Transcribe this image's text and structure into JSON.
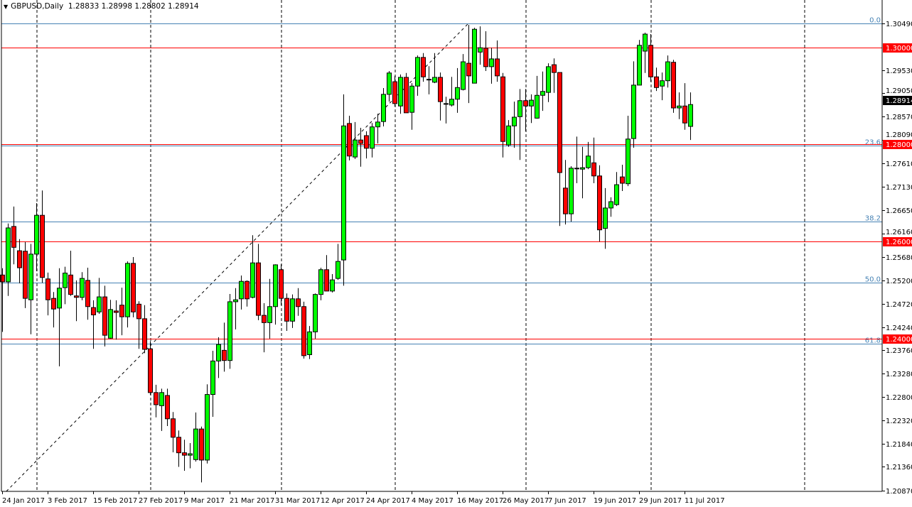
{
  "header": {
    "symbol_timeframe": "GBPUSD,Daily",
    "ohlc": "1.28833 1.28998 1.28802 1.28914",
    "menu_icon": "triangle-down-icon"
  },
  "chart_data": {
    "type": "candlestick",
    "symbol": "GBPUSD",
    "timeframe": "Daily",
    "ylim": [
      1.2087,
      1.3049
    ],
    "grid": false,
    "colors": {
      "bull": "#00FF00",
      "bear": "#FF0000",
      "wick": "#000000",
      "support_resistance": "#FF0000",
      "fibonacci": "#4682B4",
      "current_price_label": "#000000"
    },
    "x_tick_labels": [
      "24 Jan 2017",
      "3 Feb 2017",
      "15 Feb 2017",
      "27 Feb 2017",
      "9 Mar 2017",
      "21 Mar 2017",
      "31 Mar 2017",
      "12 Apr 2017",
      "24 Apr 2017",
      "4 May 2017",
      "16 May 2017",
      "26 May 2017",
      "7 Jun 2017",
      "19 Jun 2017",
      "29 Jun 2017",
      "11 Jul 2017"
    ],
    "y_tick_labels": [
      "1.30490",
      "1.29530",
      "1.29050",
      "1.28570",
      "1.28090",
      "1.27610",
      "1.27130",
      "1.26650",
      "1.26160",
      "1.25680",
      "1.25200",
      "1.24720",
      "1.24240",
      "1.23760",
      "1.23280",
      "1.22800",
      "1.22320",
      "1.21840",
      "1.21360",
      "1.20870"
    ],
    "current_price": "1.28914",
    "horizontal_levels": [
      "1.30000",
      "1.28000",
      "1.26000",
      "1.24000"
    ],
    "fibonacci_levels": [
      {
        "label": "0.0",
        "price": 1.3049
      },
      {
        "label": "23.6",
        "price": 1.27975
      },
      {
        "label": "38.2",
        "price": 1.26411
      },
      {
        "label": "50.0",
        "price": 1.25154
      },
      {
        "label": "61.8",
        "price": 1.23896
      }
    ],
    "candles_ohlc": [
      [
        1.2531,
        1.2545,
        1.2414,
        1.2517
      ],
      [
        1.2517,
        1.2637,
        1.2488,
        1.2628
      ],
      [
        1.2631,
        1.2672,
        1.2553,
        1.2588
      ],
      [
        1.2581,
        1.2605,
        1.2514,
        1.2546
      ],
      [
        1.258,
        1.2599,
        1.2463,
        1.2483
      ],
      [
        1.248,
        1.2595,
        1.2409,
        1.2574
      ],
      [
        1.2574,
        1.2679,
        1.2539,
        1.2654
      ],
      [
        1.2654,
        1.2705,
        1.2515,
        1.2526
      ],
      [
        1.2523,
        1.2536,
        1.2448,
        1.248
      ],
      [
        1.2483,
        1.2496,
        1.2423,
        1.2461
      ],
      [
        1.2463,
        1.2545,
        1.2343,
        1.2504
      ],
      [
        1.2505,
        1.2548,
        1.2471,
        1.2535
      ],
      [
        1.2531,
        1.2581,
        1.2488,
        1.2491
      ],
      [
        1.2488,
        1.252,
        1.2436,
        1.2485
      ],
      [
        1.2485,
        1.2537,
        1.2479,
        1.2524
      ],
      [
        1.252,
        1.2546,
        1.2439,
        1.2466
      ],
      [
        1.2464,
        1.2479,
        1.2379,
        1.2449
      ],
      [
        1.2455,
        1.2525,
        1.2451,
        1.2486
      ],
      [
        1.2486,
        1.2509,
        1.2384,
        1.2407
      ],
      [
        1.2401,
        1.248,
        1.24,
        1.246
      ],
      [
        1.2457,
        1.2479,
        1.2398,
        1.2454
      ],
      [
        1.2469,
        1.2505,
        1.2407,
        1.2445
      ],
      [
        1.2445,
        1.2559,
        1.2423,
        1.2555
      ],
      [
        1.2555,
        1.2568,
        1.2444,
        1.2455
      ],
      [
        1.2471,
        1.2477,
        1.2379,
        1.2441
      ],
      [
        1.2441,
        1.2469,
        1.237,
        1.2378
      ],
      [
        1.2379,
        1.2395,
        1.2284,
        1.2289
      ],
      [
        1.2289,
        1.2305,
        1.2238,
        1.2264
      ],
      [
        1.2262,
        1.2297,
        1.221,
        1.2289
      ],
      [
        1.2283,
        1.2297,
        1.222,
        1.2235
      ],
      [
        1.2235,
        1.2249,
        1.2166,
        1.2197
      ],
      [
        1.2197,
        1.2211,
        1.2136,
        1.2165
      ],
      [
        1.2165,
        1.2192,
        1.2128,
        1.216
      ],
      [
        1.216,
        1.2185,
        1.2133,
        1.2163
      ],
      [
        1.2151,
        1.2248,
        1.2147,
        1.2214
      ],
      [
        1.2214,
        1.2219,
        1.2104,
        1.215
      ],
      [
        1.215,
        1.2306,
        1.2143,
        1.2285
      ],
      [
        1.2285,
        1.2375,
        1.2239,
        1.2354
      ],
      [
        1.2354,
        1.2403,
        1.2319,
        1.2388
      ],
      [
        1.2376,
        1.2433,
        1.2332,
        1.2355
      ],
      [
        1.2355,
        1.2492,
        1.2338,
        1.2476
      ],
      [
        1.2476,
        1.2504,
        1.2419,
        1.248
      ],
      [
        1.2482,
        1.253,
        1.246,
        1.2518
      ],
      [
        1.2518,
        1.252,
        1.2466,
        1.2482
      ],
      [
        1.2485,
        1.2613,
        1.2483,
        1.2556
      ],
      [
        1.2556,
        1.2595,
        1.2438,
        1.2448
      ],
      [
        1.2448,
        1.2473,
        1.2372,
        1.2433
      ],
      [
        1.2433,
        1.2523,
        1.24,
        1.2466
      ],
      [
        1.2466,
        1.2553,
        1.2429,
        1.2552
      ],
      [
        1.2542,
        1.2553,
        1.2469,
        1.2483
      ],
      [
        1.2483,
        1.2493,
        1.2416,
        1.2436
      ],
      [
        1.2436,
        1.2491,
        1.2422,
        1.2482
      ],
      [
        1.2482,
        1.2504,
        1.2447,
        1.2466
      ],
      [
        1.2466,
        1.2476,
        1.2359,
        1.2365
      ],
      [
        1.2367,
        1.2426,
        1.2358,
        1.2414
      ],
      [
        1.2414,
        1.2493,
        1.24,
        1.2491
      ],
      [
        1.2491,
        1.2546,
        1.2479,
        1.2542
      ],
      [
        1.2542,
        1.2572,
        1.2498,
        1.2498
      ],
      [
        1.2498,
        1.2533,
        1.2495,
        1.2521
      ],
      [
        1.2524,
        1.2595,
        1.2521,
        1.2559
      ],
      [
        1.2562,
        1.2903,
        1.2509,
        1.2838
      ],
      [
        1.2843,
        1.2859,
        1.2767,
        1.2776
      ],
      [
        1.2774,
        1.2846,
        1.277,
        1.2809
      ],
      [
        1.2809,
        1.2834,
        1.2754,
        1.2802
      ],
      [
        1.2818,
        1.2827,
        1.2771,
        1.2792
      ],
      [
        1.2792,
        1.2844,
        1.2773,
        1.2836
      ],
      [
        1.2836,
        1.2863,
        1.2802,
        1.2846
      ],
      [
        1.2847,
        1.2916,
        1.2837,
        1.2903
      ],
      [
        1.2903,
        1.2951,
        1.2888,
        1.2947
      ],
      [
        1.2929,
        1.2941,
        1.2878,
        1.2884
      ],
      [
        1.2879,
        1.2944,
        1.2863,
        1.2938
      ],
      [
        1.2938,
        1.2947,
        1.2865,
        1.2865
      ],
      [
        1.2866,
        1.2926,
        1.283,
        1.292
      ],
      [
        1.292,
        1.2983,
        1.29,
        1.2979
      ],
      [
        1.2979,
        1.2988,
        1.2929,
        1.2939
      ],
      [
        1.2934,
        1.2961,
        1.2903,
        1.2933
      ],
      [
        1.2928,
        1.2988,
        1.2926,
        1.2938
      ],
      [
        1.2938,
        1.2948,
        1.2849,
        1.2888
      ],
      [
        1.2884,
        1.2898,
        1.2843,
        1.2883
      ],
      [
        1.2881,
        1.2939,
        1.2878,
        1.2893
      ],
      [
        1.2893,
        1.2957,
        1.2865,
        1.2917
      ],
      [
        1.2913,
        1.2986,
        1.2911,
        1.297
      ],
      [
        1.2967,
        1.3046,
        1.2885,
        1.2941
      ],
      [
        1.2926,
        1.304,
        1.2926,
        1.3037
      ],
      [
        1.299,
        1.3043,
        1.2964,
        1.2999
      ],
      [
        1.2998,
        1.3033,
        1.2951,
        1.296
      ],
      [
        1.296,
        1.2999,
        1.2925,
        1.2976
      ],
      [
        1.2976,
        1.3014,
        1.2929,
        1.2941
      ],
      [
        1.2939,
        1.2947,
        1.2773,
        1.2806
      ],
      [
        1.2799,
        1.285,
        1.2795,
        1.2838
      ],
      [
        1.2838,
        1.2888,
        1.2793,
        1.2856
      ],
      [
        1.2857,
        1.2914,
        1.2768,
        1.289
      ],
      [
        1.289,
        1.2914,
        1.2827,
        1.2879
      ],
      [
        1.2879,
        1.2903,
        1.2844,
        1.2891
      ],
      [
        1.2854,
        1.2941,
        1.2853,
        1.2901
      ],
      [
        1.2901,
        1.295,
        1.2869,
        1.2909
      ],
      [
        1.2907,
        1.2967,
        1.2887,
        1.296
      ],
      [
        1.2964,
        1.2977,
        1.2906,
        1.2948
      ],
      [
        1.2948,
        1.2948,
        1.2632,
        1.2742
      ],
      [
        1.271,
        1.2768,
        1.2635,
        1.2657
      ],
      [
        1.2657,
        1.2755,
        1.2641,
        1.2751
      ],
      [
        1.2751,
        1.2816,
        1.272,
        1.275
      ],
      [
        1.2749,
        1.2795,
        1.2689,
        1.2752
      ],
      [
        1.2752,
        1.2805,
        1.2749,
        1.2776
      ],
      [
        1.2762,
        1.2814,
        1.272,
        1.2735
      ],
      [
        1.2735,
        1.2757,
        1.26,
        1.2624
      ],
      [
        1.2627,
        1.271,
        1.2585,
        1.2669
      ],
      [
        1.2669,
        1.2691,
        1.2651,
        1.2682
      ],
      [
        1.2676,
        1.2743,
        1.2673,
        1.2717
      ],
      [
        1.2733,
        1.2758,
        1.2704,
        1.272
      ],
      [
        1.2719,
        1.2859,
        1.2714,
        1.2811
      ],
      [
        1.2812,
        1.2971,
        1.2793,
        1.2922
      ],
      [
        1.2922,
        1.3015,
        1.2922,
        1.3004
      ],
      [
        1.2992,
        1.303,
        1.2947,
        1.3027
      ],
      [
        1.3004,
        1.3027,
        1.2929,
        1.2939
      ],
      [
        1.2939,
        1.2958,
        1.291,
        1.2917
      ],
      [
        1.292,
        1.2948,
        1.2891,
        1.2931
      ],
      [
        1.2931,
        1.2983,
        1.2917,
        1.297
      ],
      [
        1.2969,
        1.2974,
        1.2865,
        1.2875
      ],
      [
        1.2875,
        1.2907,
        1.2852,
        1.2879
      ],
      [
        1.2879,
        1.2926,
        1.283,
        1.2844
      ],
      [
        1.2837,
        1.2907,
        1.2809,
        1.2882
      ]
    ]
  }
}
